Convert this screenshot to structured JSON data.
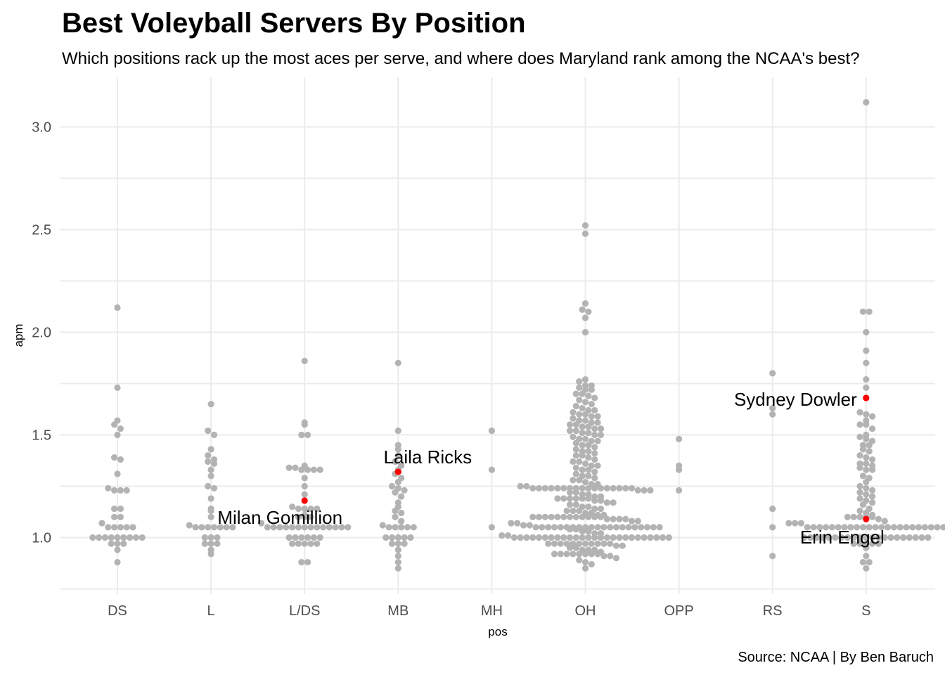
{
  "chart_data": {
    "type": "scatter",
    "title": "Best Voleyball Servers By Position",
    "subtitle": "Which positions rack up the most aces per serve, and where does Maryland rank among the NCAA's best?",
    "xlabel": "pos",
    "ylabel": "apm",
    "caption": "Source: NCAA | By Ben Baruch",
    "categories": [
      "DS",
      "L",
      "L/DS",
      "MB",
      "MH",
      "OH",
      "OPP",
      "RS",
      "S"
    ],
    "y_ticks": [
      "1.0",
      "1.5",
      "2.0",
      "2.5",
      "3.0"
    ],
    "ylim": [
      0.82,
      3.22
    ],
    "grid": true,
    "legend": "none",
    "colors": {
      "point": "#b3b3b3",
      "highlight": "#ff0000",
      "grid": "#ebebeb",
      "text": "#000000",
      "tick": "#4d4d4d"
    },
    "points": [
      {
        "pos": "DS",
        "values": [
          2.12,
          1.73,
          1.57,
          1.55,
          1.53,
          1.5,
          1.39,
          1.38,
          1.31,
          1.24,
          1.23,
          1.23,
          1.23,
          1.14,
          1.14,
          1.1,
          1.1,
          1.07,
          1.05,
          1.05,
          1.05,
          1.05,
          1.05,
          1.0,
          1.0,
          1.0,
          1.0,
          1.0,
          1.0,
          1.0,
          1.0,
          1.0,
          0.97,
          0.97,
          0.97,
          0.94,
          0.88
        ]
      },
      {
        "pos": "L",
        "values": [
          1.65,
          1.52,
          1.5,
          1.43,
          1.4,
          1.38,
          1.37,
          1.36,
          1.33,
          1.3,
          1.25,
          1.24,
          1.19,
          1.14,
          1.13,
          1.1,
          1.06,
          1.05,
          1.05,
          1.05,
          1.05,
          1.05,
          1.05,
          1.05,
          1.0,
          1.0,
          1.0,
          0.97,
          0.97,
          0.97,
          0.94,
          0.92
        ]
      },
      {
        "pos": "L/DS",
        "values": [
          1.86,
          1.56,
          1.55,
          1.5,
          1.5,
          1.35,
          1.34,
          1.34,
          1.33,
          1.33,
          1.33,
          1.33,
          1.29,
          1.25,
          1.21,
          1.15,
          1.14,
          1.14,
          1.14,
          1.14,
          1.11,
          1.1,
          1.1,
          1.1,
          1.07,
          1.05,
          1.05,
          1.05,
          1.05,
          1.05,
          1.05,
          1.05,
          1.05,
          1.05,
          1.05,
          1.05,
          1.05,
          1.05,
          1.05,
          1.0,
          1.0,
          1.0,
          1.0,
          1.0,
          1.0,
          0.97,
          0.97,
          0.97,
          0.97,
          0.97,
          0.88,
          0.88
        ]
      },
      {
        "pos": "MB",
        "values": [
          1.85,
          1.52,
          1.45,
          1.43,
          1.4,
          1.37,
          1.35,
          1.33,
          1.31,
          1.29,
          1.27,
          1.25,
          1.24,
          1.23,
          1.22,
          1.2,
          1.17,
          1.15,
          1.13,
          1.12,
          1.1,
          1.08,
          1.06,
          1.05,
          1.05,
          1.05,
          1.05,
          1.05,
          1.0,
          1.0,
          1.0,
          1.0,
          1.0,
          0.97,
          0.97,
          0.97,
          0.94,
          0.91,
          0.88,
          0.85
        ]
      },
      {
        "pos": "MH",
        "values": [
          1.52,
          1.33,
          1.05
        ]
      },
      {
        "pos": "OPP",
        "values": [
          1.48,
          1.35,
          1.33,
          1.23
        ]
      },
      {
        "pos": "RS",
        "values": [
          1.8,
          1.63,
          1.6,
          1.14,
          1.05,
          0.91
        ]
      },
      {
        "pos": "S",
        "values": [
          3.12,
          2.1,
          2.1,
          2.0,
          1.91,
          1.85,
          1.77,
          1.73,
          1.68,
          1.61,
          1.6,
          1.59,
          1.57,
          1.55,
          1.55,
          1.53,
          1.5,
          1.49,
          1.48,
          1.47,
          1.45,
          1.45,
          1.43,
          1.42,
          1.4,
          1.39,
          1.38,
          1.36,
          1.36,
          1.35,
          1.34,
          1.33,
          1.33,
          1.3,
          1.29,
          1.27,
          1.25,
          1.24,
          1.23,
          1.22,
          1.21,
          1.2,
          1.19,
          1.18,
          1.17,
          1.16,
          1.14,
          1.13,
          1.12,
          1.11,
          1.1,
          1.1,
          1.1,
          1.1,
          1.1,
          1.09,
          1.08,
          1.07,
          1.07,
          1.07,
          1.05,
          1.05,
          1.05,
          1.05,
          1.05,
          1.05,
          1.05,
          1.05,
          1.05,
          1.05,
          1.05,
          1.05,
          1.05,
          1.05,
          1.05,
          1.05,
          1.05,
          1.05,
          1.05,
          1.05,
          1.05,
          1.05,
          1.05,
          1.0,
          1.0,
          1.0,
          1.0,
          1.0,
          1.0,
          1.0,
          1.0,
          1.0,
          1.0,
          1.0,
          1.0,
          1.0,
          1.0,
          1.0,
          1.0,
          1.0,
          1.0,
          1.0,
          1.0,
          1.0,
          0.97,
          0.97,
          0.97,
          0.97,
          0.97,
          0.95,
          0.91,
          0.88,
          0.88,
          0.85
        ]
      },
      {
        "pos": "OH",
        "values": [
          2.52,
          2.48,
          2.14,
          2.11,
          2.1,
          2.07,
          2.0,
          1.77,
          1.76,
          1.74,
          1.74,
          1.73,
          1.72,
          1.72,
          1.7,
          1.7,
          1.69,
          1.68,
          1.67,
          1.66,
          1.65,
          1.64,
          1.63,
          1.62,
          1.62,
          1.61,
          1.6,
          1.6,
          1.59,
          1.59,
          1.58,
          1.57,
          1.57,
          1.56,
          1.56,
          1.55,
          1.55,
          1.54,
          1.54,
          1.53,
          1.53,
          1.52,
          1.52,
          1.51,
          1.51,
          1.5,
          1.5,
          1.49,
          1.48,
          1.48,
          1.47,
          1.47,
          1.46,
          1.45,
          1.45,
          1.44,
          1.43,
          1.42,
          1.42,
          1.41,
          1.4,
          1.4,
          1.39,
          1.38,
          1.37,
          1.37,
          1.36,
          1.35,
          1.35,
          1.34,
          1.33,
          1.33,
          1.32,
          1.31,
          1.3,
          1.3,
          1.29,
          1.28,
          1.28,
          1.27,
          1.26,
          1.26,
          1.25,
          1.25,
          1.24,
          1.24,
          1.24,
          1.24,
          1.24,
          1.24,
          1.24,
          1.24,
          1.24,
          1.24,
          1.24,
          1.24,
          1.24,
          1.24,
          1.24,
          1.24,
          1.24,
          1.23,
          1.23,
          1.23,
          1.22,
          1.22,
          1.21,
          1.21,
          1.2,
          1.2,
          1.19,
          1.19,
          1.19,
          1.19,
          1.19,
          1.19,
          1.18,
          1.18,
          1.17,
          1.17,
          1.16,
          1.16,
          1.15,
          1.15,
          1.14,
          1.14,
          1.13,
          1.13,
          1.13,
          1.12,
          1.12,
          1.11,
          1.11,
          1.1,
          1.1,
          1.1,
          1.1,
          1.1,
          1.1,
          1.1,
          1.1,
          1.1,
          1.1,
          1.1,
          1.1,
          1.09,
          1.09,
          1.09,
          1.09,
          1.08,
          1.08,
          1.07,
          1.07,
          1.06,
          1.06,
          1.05,
          1.05,
          1.05,
          1.05,
          1.05,
          1.05,
          1.05,
          1.05,
          1.05,
          1.05,
          1.05,
          1.05,
          1.05,
          1.05,
          1.05,
          1.05,
          1.05,
          1.05,
          1.05,
          1.05,
          1.05,
          1.04,
          1.04,
          1.03,
          1.03,
          1.02,
          1.02,
          1.01,
          1.01,
          1.0,
          1.0,
          1.0,
          1.0,
          1.0,
          1.0,
          1.0,
          1.0,
          1.0,
          1.0,
          1.0,
          1.0,
          1.0,
          1.0,
          1.0,
          1.0,
          1.0,
          1.0,
          1.0,
          1.0,
          1.0,
          1.0,
          1.0,
          1.0,
          1.0,
          1.0,
          0.97,
          0.97,
          0.97,
          0.97,
          0.97,
          0.97,
          0.97,
          0.97,
          0.97,
          0.97,
          0.97,
          0.96,
          0.96,
          0.95,
          0.95,
          0.94,
          0.94,
          0.94,
          0.93,
          0.92,
          0.92,
          0.92,
          0.92,
          0.92,
          0.92,
          0.92,
          0.92,
          0.91,
          0.91,
          0.9,
          0.89,
          0.88,
          0.87,
          0.85
        ]
      }
    ],
    "highlights": [
      {
        "name": "Milan Gomillion",
        "pos": "L/DS",
        "value": 1.18
      },
      {
        "name": "Laila Ricks",
        "pos": "MB",
        "value": 1.32
      },
      {
        "name": "Sydney Dowler",
        "pos": "S",
        "value": 1.68
      },
      {
        "name": "Erin Engel",
        "pos": "S",
        "value": 1.09
      }
    ]
  }
}
